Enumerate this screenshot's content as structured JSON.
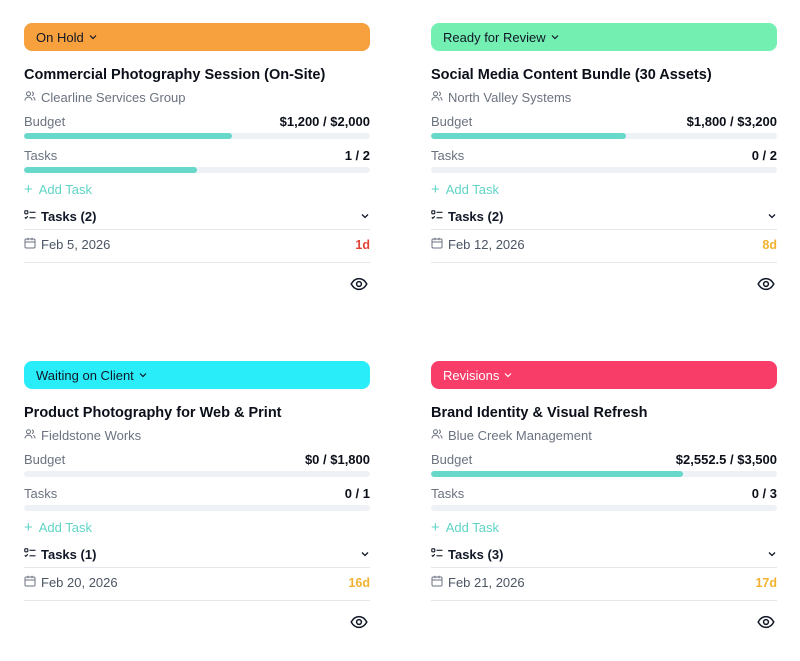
{
  "labels": {
    "budget": "Budget",
    "tasks": "Tasks",
    "add_task": "Add Task"
  },
  "cards": [
    {
      "status": "On Hold",
      "status_color": "#f7a03e",
      "title": "Commercial Photography Session (On-Site)",
      "client": "Clearline Services Group",
      "budget_text": "$1,200 / $2,000",
      "budget_fraction": 0.6,
      "tasks_text": "1 / 2",
      "tasks_fraction": 0.5,
      "tasks_toggle": "Tasks (2)",
      "date": "Feb 5, 2026",
      "days_left": "1d",
      "days_color": "#e0453a"
    },
    {
      "status": "Ready for Review",
      "status_color": "#72efb1",
      "title": "Social Media Content Bundle (30 Assets)",
      "client": "North Valley Systems",
      "budget_text": "$1,800 / $3,200",
      "budget_fraction": 0.5625,
      "tasks_text": "0 / 2",
      "tasks_fraction": 0,
      "tasks_toggle": "Tasks (2)",
      "date": "Feb 12, 2026",
      "days_left": "8d",
      "days_color": "#f2b230"
    },
    {
      "status": "Waiting on Client",
      "status_color": "#29eefa",
      "title": "Product Photography for Web & Print",
      "client": "Fieldstone Works",
      "budget_text": "$0 / $1,800",
      "budget_fraction": 0,
      "tasks_text": "0 / 1",
      "tasks_fraction": 0,
      "tasks_toggle": "Tasks (1)",
      "date": "Feb 20, 2026",
      "days_left": "16d",
      "days_color": "#f2b230"
    },
    {
      "status": "Revisions",
      "status_color": "#f73d68",
      "title": "Brand Identity & Visual Refresh",
      "client": "Blue Creek Management",
      "budget_text": "$2,552.5 / $3,500",
      "budget_fraction": 0.729,
      "tasks_text": "0 / 3",
      "tasks_fraction": 0,
      "tasks_toggle": "Tasks (3)",
      "date": "Feb 21, 2026",
      "days_left": "17d",
      "days_color": "#f2b230"
    }
  ]
}
